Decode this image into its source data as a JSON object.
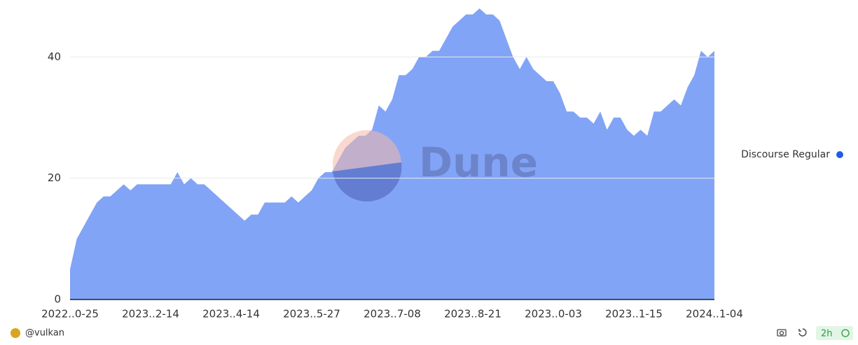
{
  "chart_data": {
    "type": "area",
    "categories": [
      "2022..0-25",
      null,
      null,
      null,
      null,
      null,
      null,
      null,
      null,
      null,
      null,
      null,
      "2023..2-14",
      null,
      null,
      null,
      null,
      null,
      null,
      null,
      null,
      null,
      null,
      null,
      "2023..4-14",
      null,
      null,
      null,
      null,
      null,
      null,
      null,
      null,
      null,
      null,
      null,
      "2023..5-27",
      null,
      null,
      null,
      null,
      null,
      null,
      null,
      null,
      null,
      null,
      null,
      "2023..7-08",
      null,
      null,
      null,
      null,
      null,
      null,
      null,
      null,
      null,
      null,
      null,
      "2023..8-21",
      null,
      null,
      null,
      null,
      null,
      null,
      null,
      null,
      null,
      null,
      null,
      "2023..0-03",
      null,
      null,
      null,
      null,
      null,
      null,
      null,
      null,
      null,
      null,
      null,
      "2023..1-15",
      null,
      null,
      null,
      null,
      null,
      null,
      null,
      null,
      null,
      null,
      null,
      "2024..1-04"
    ],
    "series": [
      {
        "name": "Discourse Regular",
        "color": "#82a4f6",
        "legend_color": "#1f5ce8",
        "values": [
          5,
          10,
          12,
          14,
          16,
          17,
          17,
          18,
          19,
          18,
          19,
          19,
          19,
          19,
          19,
          19,
          21,
          19,
          20,
          19,
          19,
          18,
          17,
          16,
          15,
          14,
          13,
          14,
          14,
          16,
          16,
          16,
          16,
          17,
          16,
          17,
          18,
          20,
          21,
          21,
          23,
          25,
          26,
          27,
          27,
          28,
          32,
          31,
          33,
          37,
          37,
          38,
          40,
          40,
          41,
          41,
          43,
          45,
          46,
          47,
          47,
          48,
          47,
          47,
          46,
          43,
          40,
          38,
          40,
          38,
          37,
          36,
          36,
          34,
          31,
          31,
          30,
          30,
          29,
          31,
          28,
          30,
          30,
          28,
          27,
          28,
          27,
          31,
          31,
          32,
          33,
          32,
          35,
          37,
          41,
          40,
          41
        ]
      }
    ],
    "ylim": [
      0,
      48
    ],
    "yticks": [
      0,
      20,
      40
    ],
    "grid": true,
    "watermark": "Dune",
    "author": "@vulkan",
    "refresh": "2h"
  }
}
